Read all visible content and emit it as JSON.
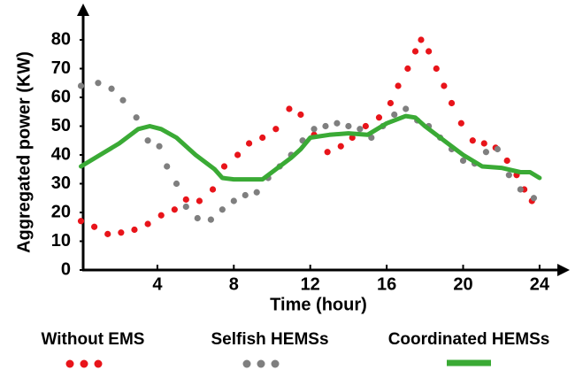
{
  "chart_data": {
    "type": "line",
    "x_label": "Time (hour)",
    "y_label": "Aggregated power (KW)",
    "xlim": [
      0,
      24
    ],
    "xticks": [
      4,
      8,
      12,
      16,
      20,
      24
    ],
    "ylim": [
      0,
      80
    ],
    "yticks": [
      0,
      10,
      20,
      30,
      40,
      50,
      60,
      70,
      80
    ],
    "grid": false,
    "legend": "bottom",
    "series": [
      {
        "name": "Without EMS",
        "color": "#e8141a",
        "style": "dots",
        "x": [
          0,
          0.7,
          1.4,
          2.1,
          2.8,
          3.5,
          4.2,
          4.9,
          5.5,
          6.2,
          6.9,
          7.5,
          8.2,
          8.8,
          9.5,
          10.2,
          10.9,
          11.5,
          12.2,
          12.9,
          13.6,
          14.2,
          14.9,
          15.6,
          16.2,
          16.6,
          17.1,
          17.5,
          17.8,
          18.2,
          18.6,
          19.0,
          19.4,
          19.9,
          20.5,
          21.1,
          21.7,
          22.3,
          22.8,
          23.2,
          23.6
        ],
        "values": [
          17,
          15,
          12.5,
          13,
          14,
          16,
          19,
          21,
          24.5,
          24,
          28,
          36,
          40,
          44,
          46,
          49,
          56,
          54,
          47,
          41,
          43,
          46,
          50,
          53,
          58,
          64,
          70,
          76,
          80,
          76,
          70,
          64,
          58,
          51,
          45,
          44,
          42.5,
          38,
          33,
          28,
          24
        ]
      },
      {
        "name": "Selfish HEMSs",
        "color": "#7f7f7f",
        "style": "dots",
        "x": [
          0,
          0.9,
          1.6,
          2.2,
          2.9,
          3.5,
          4.1,
          4.5,
          5.0,
          5.5,
          6.1,
          6.8,
          7.4,
          8.0,
          8.6,
          9.2,
          9.8,
          10.4,
          11.0,
          11.6,
          12.2,
          12.8,
          13.4,
          14.0,
          14.6,
          15.2,
          15.8,
          16.4,
          17.0,
          17.6,
          18.2,
          18.8,
          19.4,
          20.0,
          20.6,
          21.2,
          21.8,
          22.4,
          23.0,
          23.7
        ],
        "values": [
          64,
          65,
          63,
          59,
          53,
          45,
          43,
          36,
          30,
          22,
          18,
          17.5,
          21,
          24,
          26,
          27,
          32,
          36,
          40,
          45,
          49,
          50,
          51,
          50,
          49,
          46,
          50,
          54,
          56,
          52,
          50,
          46,
          42,
          38,
          37,
          41,
          42,
          33,
          28,
          25
        ]
      },
      {
        "name": "Coordinated HEMSs",
        "color": "#3aaa35",
        "style": "line",
        "x": [
          0,
          1,
          2,
          3,
          3.6,
          4.2,
          5,
          6,
          7,
          7.4,
          8,
          9,
          9.5,
          10,
          11,
          11.5,
          12,
          13,
          14,
          15,
          16,
          17,
          17.5,
          18,
          19,
          20,
          21,
          22,
          23,
          23.5,
          24
        ],
        "values": [
          36,
          40,
          44,
          49,
          50,
          49,
          46,
          40,
          35,
          32,
          31.5,
          31.5,
          31.5,
          34,
          39,
          42,
          46,
          47,
          47.5,
          47,
          51,
          53.5,
          53,
          50,
          45,
          40,
          36,
          35.5,
          34,
          34,
          32
        ]
      }
    ]
  }
}
